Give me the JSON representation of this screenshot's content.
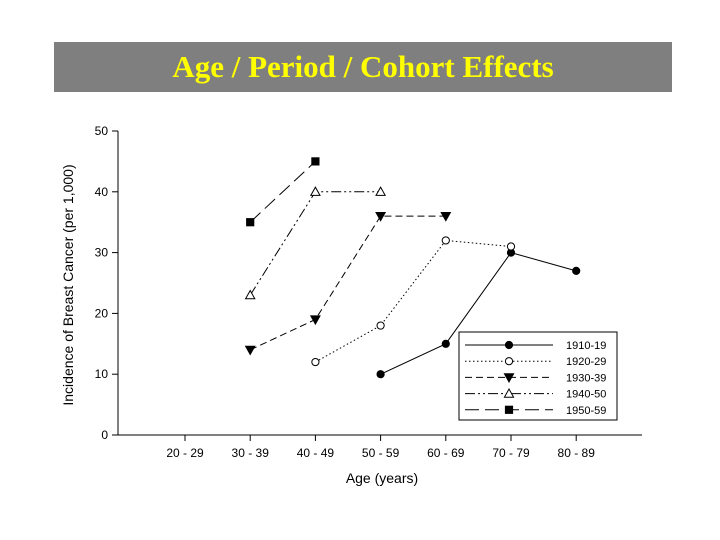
{
  "slide": {
    "title": "Age / Period / Cohort Effects",
    "title_color": "#ffff00",
    "title_bar_color": "#7f7f7f"
  },
  "chart_data": {
    "type": "line",
    "title": "",
    "xlabel": "Age (years)",
    "ylabel": "Incidence of Breast Cancer (per 1,000)",
    "categories": [
      "20 - 29",
      "30 - 39",
      "40 - 49",
      "50 - 59",
      "60 - 69",
      "70 - 79",
      "80 - 89"
    ],
    "ylim": [
      0,
      50
    ],
    "yticks": [
      0,
      10,
      20,
      30,
      40,
      50
    ],
    "grid": false,
    "legend_position": "bottom-right",
    "series": [
      {
        "name": "1910-19",
        "marker": "circle-filled",
        "dash": "solid",
        "values": [
          null,
          null,
          null,
          10,
          15,
          30,
          27
        ]
      },
      {
        "name": "1920-29",
        "marker": "circle-open",
        "dash": "dotted",
        "values": [
          null,
          null,
          12,
          18,
          32,
          31,
          null
        ]
      },
      {
        "name": "1930-39",
        "marker": "triangle-down-filled",
        "dash": "dashed",
        "values": [
          null,
          14,
          19,
          36,
          36,
          null,
          null
        ]
      },
      {
        "name": "1940-50",
        "marker": "triangle-up-open",
        "dash": "dash-dot-dot",
        "values": [
          null,
          23,
          40,
          40,
          null,
          null,
          null
        ]
      },
      {
        "name": "1950-59",
        "marker": "square-filled",
        "dash": "long-dash",
        "values": [
          null,
          35,
          45,
          null,
          null,
          null,
          null
        ]
      }
    ]
  }
}
